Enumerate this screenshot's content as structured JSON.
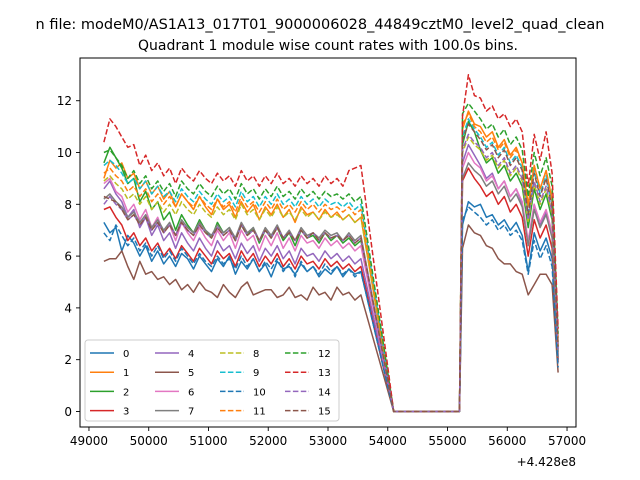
{
  "chart_data": {
    "type": "line",
    "suptitle": "n file: modeM0/AS1A13_017T01_9000006028_44849cztM0_level2_quad_clean",
    "title": "Quadrant 1 module wise count rates with 100.0s bins.",
    "xlabel": "",
    "ylabel": "",
    "x_offset_label": "+4.428e8",
    "xlim": [
      48850,
      57150
    ],
    "ylim": [
      -0.6,
      13.65
    ],
    "xticks": [
      49000,
      50000,
      51000,
      52000,
      53000,
      54000,
      55000,
      56000,
      57000
    ],
    "yticks": [
      0,
      2,
      4,
      6,
      8,
      10,
      12
    ],
    "grid": false,
    "legend_position": "lower-left",
    "legend_columns": 4,
    "series": [
      {
        "name": "0",
        "style": "solid",
        "color": "#1f77b4",
        "segment1": [
          7.3,
          6.9,
          7.1,
          6.2,
          6.8,
          6.5,
          6.0,
          6.4,
          5.8,
          6.2,
          5.7,
          6.0,
          5.6,
          6.1,
          5.9,
          5.5,
          6.0,
          5.7,
          5.4,
          5.9,
          5.6,
          6.0,
          5.3,
          5.8,
          5.5,
          5.9,
          5.4,
          5.7,
          5.2,
          5.8,
          5.5,
          5.6,
          5.3,
          5.7,
          5.4,
          5.6,
          5.2,
          5.5,
          5.3,
          5.6,
          5.2,
          5.5,
          5.3,
          5.4
        ],
        "segment2": [
          7.2,
          8.1,
          7.9,
          8.0,
          7.5,
          7.6,
          7.2,
          7.4,
          7.0,
          7.3,
          6.8,
          5.4,
          6.9,
          6.2,
          6.7,
          5.9,
          2.0
        ]
      },
      {
        "name": "1",
        "style": "solid",
        "color": "#ff7f0e",
        "segment1": [
          9.0,
          9.7,
          9.4,
          9.6,
          9.0,
          9.2,
          8.6,
          8.9,
          8.4,
          8.7,
          8.2,
          8.5,
          7.9,
          8.4,
          8.1,
          7.8,
          8.3,
          7.9,
          7.6,
          8.2,
          7.8,
          8.0,
          7.5,
          8.1,
          7.7,
          8.0,
          7.4,
          7.9,
          7.6,
          8.0,
          7.5,
          7.8,
          7.3,
          7.9,
          7.6,
          7.7,
          7.4,
          7.8,
          7.5,
          7.7,
          7.4,
          7.6,
          7.3,
          7.5
        ],
        "segment2": [
          10.9,
          11.6,
          11.1,
          11.0,
          10.6,
          10.8,
          10.2,
          10.5,
          9.9,
          10.2,
          9.6,
          8.0,
          9.5,
          8.6,
          9.3,
          8.2,
          2.6
        ]
      },
      {
        "name": "2",
        "style": "solid",
        "color": "#2ca02c",
        "segment1": [
          9.6,
          10.2,
          9.8,
          9.4,
          8.8,
          9.0,
          8.1,
          8.5,
          7.8,
          8.1,
          7.4,
          7.7,
          7.0,
          7.6,
          7.2,
          6.9,
          7.4,
          7.0,
          6.7,
          7.3,
          6.9,
          7.1,
          6.6,
          7.2,
          6.8,
          7.1,
          6.5,
          7.0,
          6.7,
          7.1,
          6.6,
          6.9,
          6.4,
          7.0,
          6.7,
          6.8,
          6.5,
          6.9,
          6.6,
          6.8,
          6.5,
          6.7,
          6.4,
          6.6
        ],
        "segment2": [
          10.3,
          11.2,
          10.8,
          10.1,
          9.6,
          9.8,
          9.2,
          9.5,
          8.9,
          9.2,
          8.7,
          7.1,
          8.6,
          7.8,
          8.4,
          7.4,
          2.3
        ]
      },
      {
        "name": "3",
        "style": "solid",
        "color": "#d62728",
        "segment1": [
          7.8,
          7.9,
          7.5,
          7.2,
          6.6,
          6.9,
          6.4,
          6.7,
          6.2,
          6.5,
          6.0,
          6.3,
          5.9,
          6.4,
          6.1,
          5.8,
          6.3,
          6.0,
          5.7,
          6.2,
          5.9,
          6.1,
          5.6,
          6.2,
          5.8,
          6.1,
          5.6,
          6.0,
          5.7,
          6.1,
          5.6,
          5.9,
          5.5,
          6.0,
          5.7,
          5.8,
          5.5,
          5.9,
          5.6,
          5.8,
          5.5,
          5.7,
          5.4,
          5.6
        ],
        "segment2": [
          8.9,
          9.4,
          9.0,
          8.7,
          8.3,
          8.5,
          8.0,
          8.3,
          7.7,
          8.0,
          7.5,
          6.0,
          7.4,
          6.7,
          7.2,
          6.3,
          1.9
        ]
      },
      {
        "name": "4",
        "style": "solid",
        "color": "#9467bd",
        "segment1": [
          8.6,
          8.9,
          8.4,
          8.1,
          7.5,
          7.8,
          7.1,
          7.5,
          6.8,
          7.2,
          6.6,
          6.9,
          6.3,
          6.9,
          6.5,
          6.2,
          6.7,
          6.3,
          6.0,
          6.6,
          6.2,
          6.4,
          5.9,
          6.5,
          6.1,
          6.4,
          5.8,
          6.3,
          6.0,
          6.4,
          5.9,
          6.2,
          5.7,
          6.3,
          6.0,
          6.1,
          5.8,
          6.2,
          5.9,
          6.1,
          5.8,
          6.0,
          5.7,
          5.9
        ],
        "segment2": [
          9.6,
          10.3,
          9.9,
          9.5,
          9.0,
          9.2,
          8.6,
          8.9,
          8.3,
          8.6,
          8.0,
          6.5,
          8.0,
          7.2,
          7.7,
          6.8,
          2.1
        ]
      },
      {
        "name": "5",
        "style": "solid",
        "color": "#8c564b",
        "segment1": [
          5.8,
          5.9,
          5.9,
          6.2,
          5.6,
          5.1,
          5.8,
          5.3,
          5.4,
          5.1,
          5.2,
          4.9,
          5.1,
          4.7,
          4.9,
          4.6,
          5.0,
          4.7,
          4.6,
          4.4,
          4.9,
          4.6,
          4.4,
          4.8,
          5.0,
          4.5,
          4.6,
          4.7,
          4.7,
          4.4,
          4.5,
          4.8,
          4.4,
          4.5,
          4.3,
          4.8,
          4.5,
          4.6,
          4.3,
          4.8,
          4.5,
          4.6,
          4.3,
          4.5
        ],
        "segment2": [
          6.3,
          7.2,
          6.9,
          6.8,
          6.4,
          6.3,
          5.9,
          5.7,
          5.7,
          5.4,
          5.3,
          4.5,
          4.9,
          5.3,
          5.3,
          4.9,
          1.5
        ]
      },
      {
        "name": "6",
        "style": "solid",
        "color": "#e377c2",
        "segment1": [
          8.8,
          9.0,
          8.5,
          8.3,
          7.7,
          8.0,
          7.4,
          7.8,
          7.1,
          7.5,
          6.9,
          7.2,
          6.6,
          7.3,
          6.9,
          6.6,
          7.1,
          6.7,
          6.4,
          7.0,
          6.6,
          6.9,
          6.3,
          7.0,
          6.6,
          6.8,
          6.2,
          6.8,
          6.4,
          6.9,
          6.3,
          6.7,
          6.2,
          6.8,
          6.5,
          6.6,
          6.3,
          6.7,
          6.4,
          6.6,
          6.3,
          6.5,
          6.2,
          6.4
        ],
        "segment2": [
          9.4,
          10.0,
          9.6,
          9.4,
          8.9,
          9.1,
          8.6,
          8.9,
          8.3,
          8.6,
          8.1,
          6.6,
          8.0,
          7.3,
          7.8,
          6.9,
          2.2
        ]
      },
      {
        "name": "7",
        "style": "solid",
        "color": "#7f7f7f",
        "segment1": [
          8.2,
          8.4,
          8.1,
          7.9,
          7.5,
          7.7,
          7.3,
          7.6,
          7.1,
          7.4,
          7.0,
          7.3,
          6.8,
          7.4,
          7.1,
          6.9,
          7.3,
          7.0,
          6.8,
          7.2,
          6.9,
          7.1,
          6.7,
          7.3,
          6.9,
          7.1,
          6.6,
          7.1,
          6.8,
          7.2,
          6.7,
          7.0,
          6.6,
          7.1,
          6.8,
          6.9,
          6.7,
          7.0,
          6.8,
          6.9,
          6.6,
          6.9,
          6.6,
          6.8
        ],
        "segment2": [
          9.0,
          9.6,
          9.3,
          9.1,
          8.7,
          8.9,
          8.4,
          8.7,
          8.1,
          8.4,
          7.9,
          6.4,
          7.8,
          7.1,
          7.6,
          6.7,
          2.1
        ]
      },
      {
        "name": "8",
        "style": "dashed",
        "color": "#bcbd22",
        "segment1": [
          8.9,
          9.1,
          8.8,
          8.6,
          8.2,
          8.4,
          8.0,
          8.3,
          7.8,
          8.1,
          7.7,
          8.0,
          7.6,
          8.1,
          7.8,
          7.6,
          8.0,
          7.7,
          7.5,
          7.9,
          7.6,
          7.8,
          7.4,
          8.0,
          7.6,
          7.8,
          7.4,
          7.8,
          7.5,
          7.9,
          7.5,
          7.7,
          7.4,
          7.8,
          7.5,
          7.7,
          7.4,
          7.7,
          7.5,
          7.6,
          7.4,
          7.6,
          7.3,
          7.5
        ],
        "segment2": [
          10.0,
          10.6,
          10.3,
          10.1,
          9.7,
          9.9,
          9.4,
          9.7,
          9.1,
          9.4,
          8.9,
          7.3,
          8.8,
          8.0,
          8.6,
          7.6,
          2.5
        ]
      },
      {
        "name": "9",
        "style": "dashed",
        "color": "#17becf",
        "segment1": [
          9.5,
          9.7,
          9.5,
          9.2,
          8.8,
          9.0,
          8.6,
          8.9,
          8.4,
          8.7,
          8.3,
          8.5,
          8.1,
          8.6,
          8.3,
          8.1,
          8.5,
          8.2,
          8.0,
          8.4,
          8.1,
          8.3,
          7.9,
          8.5,
          8.1,
          8.3,
          7.9,
          8.3,
          8.0,
          8.4,
          8.0,
          8.2,
          7.9,
          8.3,
          8.0,
          8.2,
          7.9,
          8.2,
          8.0,
          8.1,
          7.9,
          8.1,
          7.8,
          8.0
        ],
        "segment2": [
          10.6,
          11.3,
          10.9,
          10.6,
          10.2,
          10.4,
          9.9,
          10.2,
          9.6,
          9.9,
          9.4,
          7.7,
          9.3,
          8.4,
          9.1,
          8.0,
          2.7
        ]
      },
      {
        "name": "10",
        "style": "dashed",
        "color": "#1f77b4",
        "segment1": [
          6.9,
          6.6,
          7.2,
          6.8,
          6.4,
          6.7,
          6.2,
          6.5,
          6.0,
          6.4,
          5.9,
          6.2,
          5.8,
          6.3,
          6.0,
          5.7,
          6.1,
          5.8,
          5.6,
          6.0,
          5.7,
          5.9,
          5.5,
          6.0,
          5.6,
          5.9,
          5.4,
          5.8,
          5.5,
          5.9,
          5.4,
          5.7,
          5.2,
          5.8,
          5.4,
          5.6,
          5.3,
          5.7,
          5.4,
          5.6,
          5.3,
          5.5,
          5.2,
          5.4
        ],
        "segment2": [
          7.4,
          7.9,
          7.7,
          7.5,
          7.2,
          7.4,
          7.0,
          7.2,
          6.8,
          7.0,
          6.6,
          5.3,
          6.6,
          5.9,
          6.4,
          5.6,
          1.7
        ]
      },
      {
        "name": "11",
        "style": "dashed",
        "color": "#ff7f0e",
        "segment1": [
          9.2,
          9.4,
          9.1,
          8.9,
          8.5,
          8.7,
          8.3,
          8.6,
          8.1,
          8.4,
          8.0,
          8.3,
          7.9,
          8.4,
          8.1,
          7.9,
          8.3,
          8.0,
          7.8,
          8.2,
          7.9,
          8.1,
          7.7,
          8.3,
          7.9,
          8.1,
          7.7,
          8.1,
          7.8,
          8.2,
          7.8,
          8.0,
          7.7,
          8.1,
          7.8,
          8.0,
          7.7,
          8.0,
          7.8,
          7.9,
          7.7,
          7.9,
          7.6,
          7.8
        ],
        "segment2": [
          11.1,
          11.5,
          11.0,
          10.8,
          10.4,
          10.6,
          10.1,
          10.4,
          9.8,
          10.1,
          9.6,
          7.9,
          9.5,
          8.6,
          9.3,
          8.2,
          2.8
        ]
      },
      {
        "name": "12",
        "style": "dashed",
        "color": "#2ca02c",
        "segment1": [
          10.0,
          10.1,
          9.8,
          9.5,
          9.0,
          9.3,
          8.8,
          9.1,
          8.6,
          8.9,
          8.5,
          8.8,
          8.3,
          8.9,
          8.6,
          8.4,
          8.8,
          8.5,
          8.3,
          8.7,
          8.4,
          8.6,
          8.2,
          8.8,
          8.4,
          8.6,
          8.2,
          8.6,
          8.3,
          8.7,
          8.3,
          8.5,
          8.2,
          8.6,
          8.3,
          8.5,
          8.2,
          8.5,
          8.3,
          8.4,
          8.2,
          8.4,
          8.1,
          8.3
        ],
        "segment2": [
          11.5,
          11.9,
          11.6,
          11.3,
          10.9,
          11.1,
          10.6,
          10.9,
          10.3,
          10.6,
          10.1,
          8.3,
          10.0,
          9.1,
          9.8,
          8.7,
          3.0
        ]
      },
      {
        "name": "13",
        "style": "dashed",
        "color": "#d62728",
        "segment1": [
          10.4,
          11.3,
          11.0,
          10.6,
          10.2,
          10.3,
          9.5,
          9.9,
          9.3,
          9.6,
          9.1,
          9.4,
          8.8,
          9.4,
          9.1,
          8.9,
          9.3,
          9.0,
          8.8,
          9.2,
          8.9,
          9.1,
          8.7,
          9.3,
          8.9,
          9.1,
          8.7,
          9.1,
          8.8,
          9.2,
          8.8,
          9.0,
          8.7,
          9.1,
          8.8,
          9.0,
          8.7,
          9.1,
          8.8,
          9.0,
          8.7,
          9.3,
          9.4,
          9.5
        ],
        "segment2": [
          11.4,
          13.0,
          12.2,
          12.1,
          11.6,
          11.8,
          11.3,
          11.5,
          11.0,
          11.3,
          10.8,
          8.7,
          10.7,
          9.7,
          10.8,
          9.2,
          3.2
        ]
      },
      {
        "name": "14",
        "style": "dashed",
        "color": "#9467bd",
        "segment1": [
          8.0,
          8.3,
          8.0,
          7.8,
          7.4,
          7.6,
          7.2,
          7.5,
          7.0,
          7.3,
          6.9,
          7.2,
          6.8,
          7.3,
          7.0,
          6.8,
          7.2,
          6.9,
          6.7,
          7.1,
          6.8,
          7.0,
          6.6,
          7.2,
          6.8,
          7.0,
          6.6,
          7.0,
          6.7,
          7.1,
          6.7,
          6.9,
          6.6,
          7.0,
          6.7,
          6.9,
          6.6,
          6.9,
          6.7,
          6.8,
          6.6,
          6.8,
          6.5,
          6.7
        ],
        "segment2": [
          10.1,
          10.7,
          10.4,
          10.2,
          9.8,
          10.0,
          9.5,
          9.8,
          9.2,
          9.5,
          9.0,
          7.4,
          8.9,
          8.1,
          8.7,
          7.7,
          2.4
        ]
      },
      {
        "name": "15",
        "style": "dashed",
        "color": "#8c564b",
        "segment1": [
          8.3,
          8.2,
          8.1,
          7.8,
          7.4,
          7.6,
          7.2,
          7.5,
          7.0,
          7.3,
          6.9,
          7.2,
          6.8,
          7.3,
          7.0,
          6.8,
          7.2,
          6.9,
          6.7,
          7.1,
          6.8,
          7.0,
          6.6,
          7.2,
          6.8,
          7.0,
          6.6,
          7.0,
          6.7,
          7.1,
          6.7,
          6.9,
          6.6,
          7.0,
          6.7,
          6.9,
          6.6,
          6.9,
          6.7,
          6.8,
          6.6,
          6.8,
          6.5,
          6.7
        ],
        "segment2": [
          10.5,
          11.1,
          10.8,
          10.5,
          10.1,
          10.3,
          9.8,
          10.1,
          9.5,
          9.8,
          9.3,
          7.6,
          9.2,
          8.3,
          9.0,
          7.9,
          2.5
        ]
      }
    ],
    "x_segment1": [
      49250,
      49350,
      49450,
      49550,
      49650,
      49750,
      49850,
      49950,
      50050,
      50150,
      50250,
      50350,
      50450,
      50550,
      50650,
      50750,
      50850,
      50950,
      51050,
      51150,
      51250,
      51350,
      51450,
      51550,
      51650,
      51750,
      51850,
      51950,
      52050,
      52150,
      52250,
      52350,
      52450,
      52550,
      52650,
      52750,
      52850,
      52950,
      53050,
      53150,
      53250,
      53350,
      53450,
      53550
    ],
    "x_zero": [
      54100,
      55200
    ],
    "x_segment2": [
      55250,
      55350,
      55450,
      55550,
      55650,
      55750,
      55850,
      55950,
      56050,
      56150,
      56250,
      56350,
      56450,
      56550,
      56650,
      56750,
      56850
    ]
  }
}
